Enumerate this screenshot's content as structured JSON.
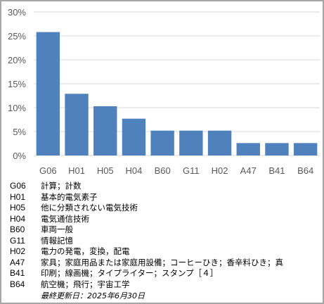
{
  "chart_data": {
    "type": "bar",
    "categories": [
      "G06",
      "H01",
      "H05",
      "H04",
      "B60",
      "G11",
      "H02",
      "A47",
      "B41",
      "B64"
    ],
    "values": [
      25.8,
      12.9,
      10.3,
      7.7,
      5.2,
      5.2,
      5.2,
      2.6,
      2.6,
      2.6
    ],
    "ylim": [
      0,
      30
    ],
    "yticks": [
      "0%",
      "5%",
      "10%",
      "15%",
      "20%",
      "25%",
      "30%"
    ],
    "ytick_values": [
      0,
      5,
      10,
      15,
      20,
      25,
      30
    ],
    "bar_color": "#4f81bd",
    "grid": true,
    "gridline_color": "#d9d9d9"
  },
  "legend": [
    {
      "code": "G06",
      "desc": "計算；計数"
    },
    {
      "code": "H01",
      "desc": "基本的電気素子"
    },
    {
      "code": "H05",
      "desc": "他に分類されない電気技術"
    },
    {
      "code": "H04",
      "desc": "電気通信技術"
    },
    {
      "code": "B60",
      "desc": "車両一般"
    },
    {
      "code": "G11",
      "desc": "情報記憶"
    },
    {
      "code": "H02",
      "desc": "電力の発電，変換，配電"
    },
    {
      "code": "A47",
      "desc": "家具；家庭用品または家庭用設備；コーヒーひき；香辛料ひき；真"
    },
    {
      "code": "B41",
      "desc": "印刷；線画機；タイプライター；スタンプ［４］"
    },
    {
      "code": "B64",
      "desc": "航空機；飛行；宇宙工学"
    }
  ],
  "updated": "最終更新日：2025年6月30日"
}
